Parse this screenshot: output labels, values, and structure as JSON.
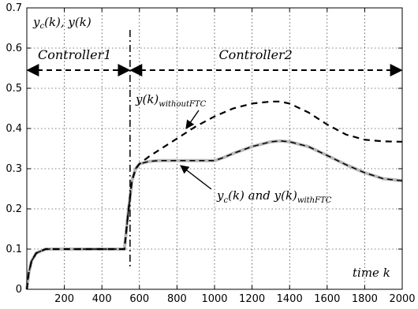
{
  "chart_data": {
    "type": "line",
    "xlim": [
      0,
      2000
    ],
    "ylim": [
      0,
      0.7
    ],
    "x_ticks": [
      200,
      400,
      600,
      800,
      1000,
      1200,
      1400,
      1600,
      1800,
      2000
    ],
    "y_ticks": [
      0,
      0.1,
      0.2,
      0.3,
      0.4,
      0.5,
      0.6,
      0.7
    ],
    "grid": true,
    "ylabel": "y_c(k), y(k)",
    "xlabel": "time k",
    "switch_time": 550,
    "regions": [
      {
        "label": "Controller1",
        "from": 0,
        "to": 550
      },
      {
        "label": "Controller2",
        "from": 550,
        "to": 2000
      }
    ],
    "region_arrow_y": 0.545,
    "series": [
      {
        "name": "y(k)_withoutFTC",
        "style": "dashed",
        "color": "#000000",
        "x": [
          0,
          10,
          25,
          50,
          100,
          150,
          200,
          300,
          400,
          520,
          540,
          560,
          580,
          600,
          650,
          700,
          800,
          900,
          1000,
          1100,
          1200,
          1300,
          1350,
          1400,
          1500,
          1600,
          1700,
          1800,
          1900,
          2000
        ],
        "y": [
          0,
          0.04,
          0.07,
          0.09,
          0.1,
          0.1,
          0.1,
          0.1,
          0.1,
          0.1,
          0.19,
          0.27,
          0.3,
          0.312,
          0.33,
          0.345,
          0.375,
          0.405,
          0.43,
          0.45,
          0.462,
          0.467,
          0.467,
          0.462,
          0.44,
          0.41,
          0.385,
          0.372,
          0.368,
          0.367
        ]
      },
      {
        "name": "y_c(k) and y(k)_withFTC",
        "style": "solid-gray-with-dashed-overlay",
        "color": "#b8b8b8",
        "x": [
          0,
          10,
          25,
          50,
          100,
          150,
          200,
          300,
          400,
          520,
          540,
          560,
          580,
          600,
          650,
          700,
          800,
          900,
          1000,
          1050,
          1100,
          1200,
          1300,
          1350,
          1400,
          1500,
          1600,
          1700,
          1800,
          1900,
          2000
        ],
        "y": [
          0,
          0.04,
          0.07,
          0.09,
          0.1,
          0.1,
          0.1,
          0.1,
          0.1,
          0.1,
          0.19,
          0.27,
          0.3,
          0.312,
          0.318,
          0.32,
          0.32,
          0.32,
          0.32,
          0.328,
          0.338,
          0.355,
          0.367,
          0.369,
          0.367,
          0.355,
          0.333,
          0.31,
          0.29,
          0.275,
          0.27
        ]
      }
    ],
    "annotations": [
      {
        "id": "without",
        "text": "y(k)_withoutFTC",
        "x": 900,
        "y": 0.4,
        "arrow_to": [
          880,
          0.405
        ]
      },
      {
        "id": "with",
        "text": "y_c(k) and y(k)_withFTC",
        "x": 1070,
        "y": 0.265,
        "arrow_to": [
          800,
          0.318
        ]
      }
    ]
  }
}
